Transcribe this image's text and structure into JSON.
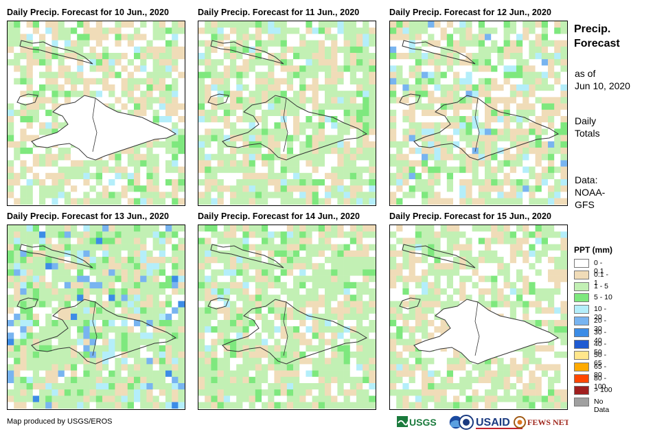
{
  "panels": [
    {
      "title": "Daily Precip. Forecast for 10 Jun., 2020"
    },
    {
      "title": "Daily Precip. Forecast for 11 Jun., 2020"
    },
    {
      "title": "Daily Precip. Forecast for 12 Jun., 2020"
    },
    {
      "title": "Daily Precip. Forecast for 13 Jun., 2020"
    },
    {
      "title": "Daily Precip. Forecast for 14 Jun., 2020"
    },
    {
      "title": "Daily Precip. Forecast for 15 Jun., 2020"
    }
  ],
  "side": {
    "title_line1": "Precip.",
    "title_line2": "Forecast",
    "asof_line1": "as of",
    "asof_line2": "Jun 10, 2020",
    "totals_line1": "Daily",
    "totals_line2": "Totals",
    "data_line1": "Data:",
    "data_line2": "NOAA-",
    "data_line3": "GFS"
  },
  "legend": {
    "title": "PPT (mm)",
    "items": [
      {
        "label": "0 - 0.1",
        "color": "#ffffff"
      },
      {
        "label": "0.1 - 1",
        "color": "#f0dcb8"
      },
      {
        "label": "1 - 5",
        "color": "#c2f0b4"
      },
      {
        "label": "5 - 10",
        "color": "#7ee87e"
      },
      {
        "label": "10 - 20",
        "color": "#b4eefa"
      },
      {
        "label": "20 - 30",
        "color": "#78b4f0"
      },
      {
        "label": "30 - 40",
        "color": "#3c8ce6"
      },
      {
        "label": "40 - 50",
        "color": "#1e5ad2"
      },
      {
        "label": "50 - 65",
        "color": "#ffe68c"
      },
      {
        "label": "65 - 80",
        "color": "#ffaa00"
      },
      {
        "label": "80 - 100",
        "color": "#ff4600"
      },
      {
        "label": "> 100",
        "color": "#a01e1e"
      },
      {
        "label": "No Data",
        "color": "#a0a0a0"
      }
    ]
  },
  "credit": "Map produced by USGS/EROS",
  "logos": {
    "usgs": "USGS",
    "usaid": "USAID",
    "fewsnet": "FEWS NET"
  }
}
